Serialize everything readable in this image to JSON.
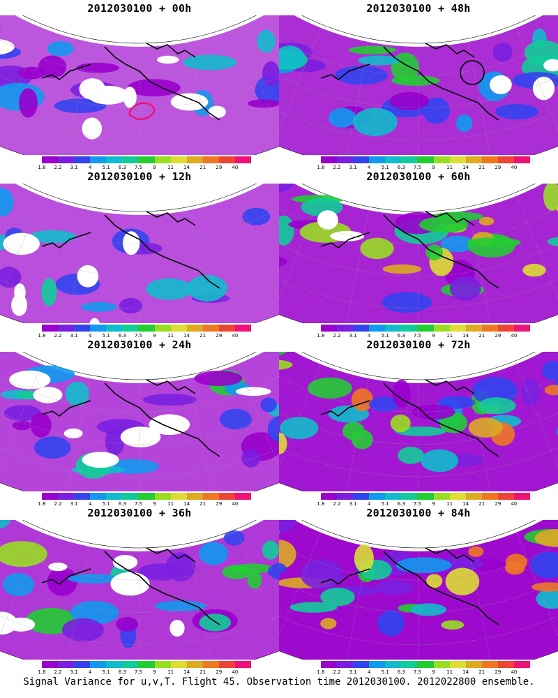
{
  "panels": [
    {
      "title": "2012030100 + 00h",
      "intensity": 0.25,
      "circle": false,
      "contour": true
    },
    {
      "title": "2012030100 + 48h",
      "intensity": 0.6,
      "circle": true,
      "contour": false
    },
    {
      "title": "2012030100 + 12h",
      "intensity": 0.3,
      "circle": false,
      "contour": false
    },
    {
      "title": "2012030100 + 60h",
      "intensity": 0.7,
      "circle": false,
      "contour": false
    },
    {
      "title": "2012030100 + 24h",
      "intensity": 0.4,
      "circle": false,
      "contour": false
    },
    {
      "title": "2012030100 + 72h",
      "intensity": 0.8,
      "circle": false,
      "contour": false
    },
    {
      "title": "2012030100 + 36h",
      "intensity": 0.5,
      "circle": false,
      "contour": false
    },
    {
      "title": "2012030100 + 84h",
      "intensity": 0.9,
      "circle": false,
      "contour": false
    }
  ],
  "colorbar": {
    "colors": [
      "#9900cc",
      "#7a1fe0",
      "#3344ee",
      "#1199ee",
      "#11bbcc",
      "#11cc99",
      "#22cc33",
      "#99dd22",
      "#dddd33",
      "#ddaa22",
      "#ee7722",
      "#ee4433",
      "#ee1177"
    ],
    "labels": [
      "1.8",
      "2.2",
      "3.1",
      "4",
      "5.1",
      "6.3",
      "7.5",
      "9",
      "11",
      "14",
      "21",
      "29",
      "40"
    ]
  },
  "caption": "Signal Variance for u,v,T. Flight 45. Observation time 2012030100. 2012022800 ensemble."
}
